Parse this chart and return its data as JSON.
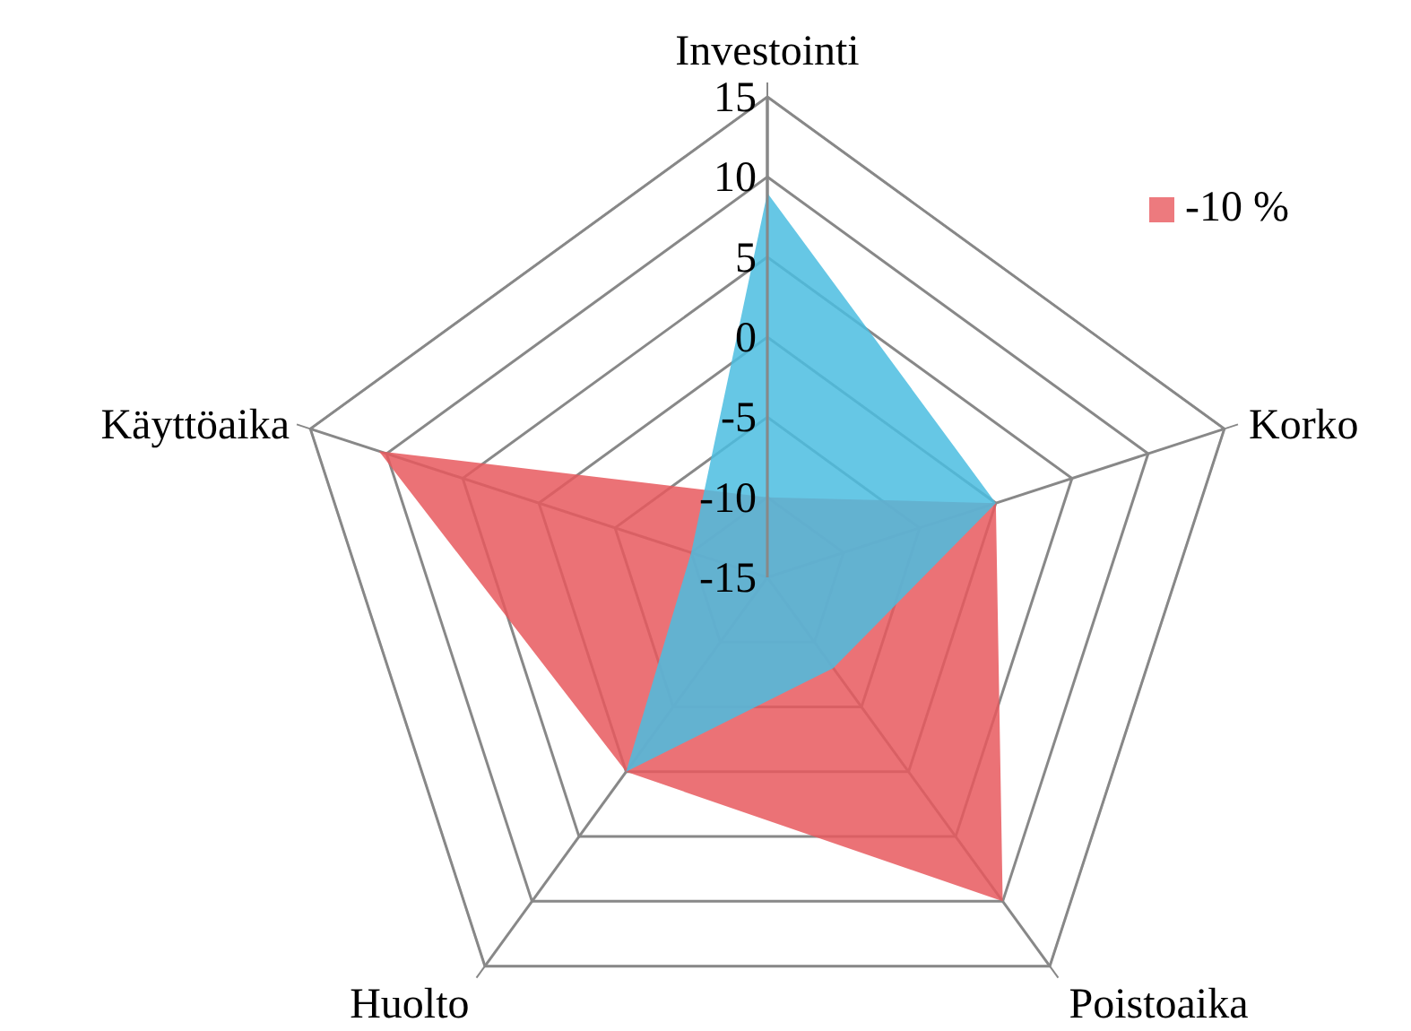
{
  "chart_data": {
    "type": "radar",
    "categories": [
      "Investointi",
      "Korko",
      "Poistoaika",
      "Huolto",
      "Käyttöaika"
    ],
    "series": [
      {
        "name": "-10 %",
        "color": "#e8595e",
        "values": [
          -10,
          0,
          10,
          0,
          10.5
        ]
      },
      {
        "color": "#4bbde0",
        "values": [
          9,
          0,
          -8,
          0,
          -10
        ]
      }
    ],
    "ylim": [
      -15,
      15
    ],
    "yticks": [
      -15,
      -10,
      -5,
      0,
      5,
      10,
      15
    ],
    "legend": "top right"
  }
}
